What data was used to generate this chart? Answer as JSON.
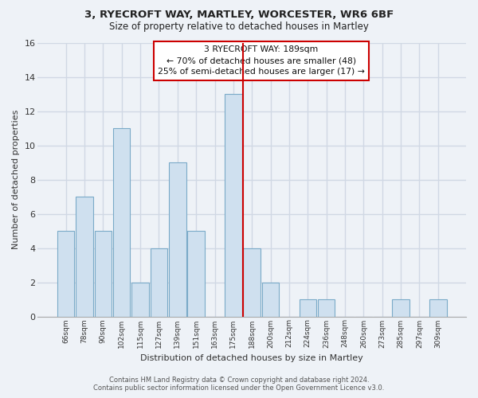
{
  "title_line1": "3, RYECROFT WAY, MARTLEY, WORCESTER, WR6 6BF",
  "title_line2": "Size of property relative to detached houses in Martley",
  "xlabel": "Distribution of detached houses by size in Martley",
  "ylabel": "Number of detached properties",
  "bin_labels": [
    "66sqm",
    "78sqm",
    "90sqm",
    "102sqm",
    "115sqm",
    "127sqm",
    "139sqm",
    "151sqm",
    "163sqm",
    "175sqm",
    "188sqm",
    "200sqm",
    "212sqm",
    "224sqm",
    "236sqm",
    "248sqm",
    "260sqm",
    "273sqm",
    "285sqm",
    "297sqm",
    "309sqm"
  ],
  "bar_values": [
    5,
    7,
    5,
    11,
    2,
    4,
    9,
    5,
    0,
    13,
    4,
    2,
    0,
    1,
    1,
    0,
    0,
    0,
    1,
    0,
    1
  ],
  "bar_color": "#cfe0ef",
  "bar_edge_color": "#7aaac8",
  "highlight_line_color": "#cc0000",
  "highlight_line_index": 9,
  "ylim": [
    0,
    16
  ],
  "yticks": [
    0,
    2,
    4,
    6,
    8,
    10,
    12,
    14,
    16
  ],
  "annotation_title": "3 RYECROFT WAY: 189sqm",
  "annotation_line1": "← 70% of detached houses are smaller (48)",
  "annotation_line2": "25% of semi-detached houses are larger (17) →",
  "annotation_box_color": "#ffffff",
  "annotation_box_edge": "#cc0000",
  "footnote_line1": "Contains HM Land Registry data © Crown copyright and database right 2024.",
  "footnote_line2": "Contains public sector information licensed under the Open Government Licence v3.0.",
  "background_color": "#eef2f7",
  "grid_color": "#d0d8e4",
  "spine_color": "#aaaaaa"
}
